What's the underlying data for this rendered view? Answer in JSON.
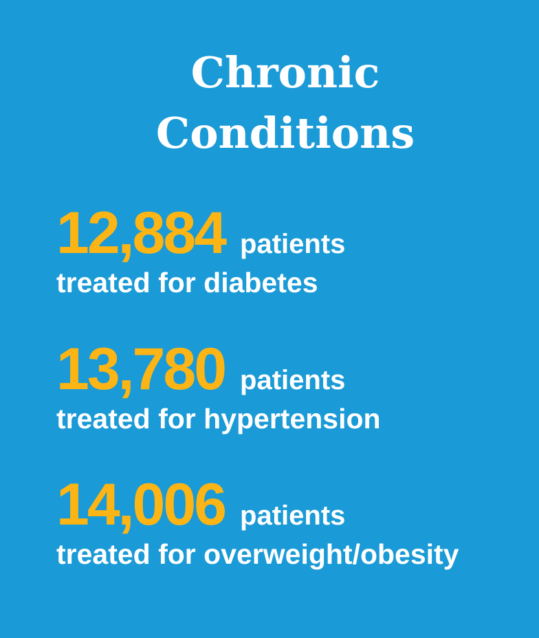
{
  "title": {
    "line1": "Chronic",
    "line2": "Conditions"
  },
  "colors": {
    "background": "#1a9ad6",
    "number": "#fdb515",
    "text": "#ffffff"
  },
  "stats": [
    {
      "number": "12,884",
      "unit": "patients",
      "description": "treated for diabetes"
    },
    {
      "number": "13,780",
      "unit": "patients",
      "description": "treated for hypertension"
    },
    {
      "number": "14,006",
      "unit": "patients",
      "description": "treated for overweight/obesity"
    }
  ]
}
